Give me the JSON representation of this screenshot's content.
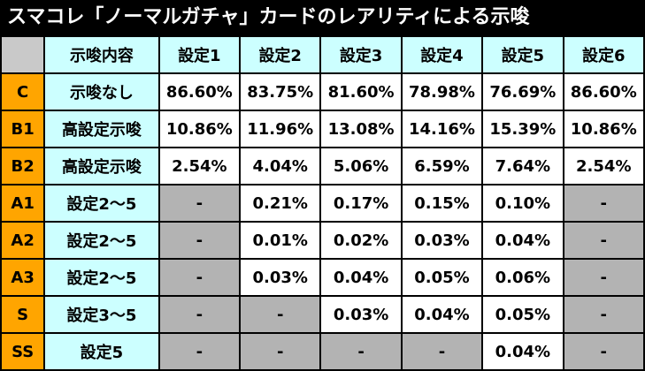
{
  "title": "スマコレ「ノーマルガチャ」カードのレアリティによる示唆",
  "headers": [
    "示唆内容",
    "設定1",
    "設定2",
    "設定3",
    "設定4",
    "設定5",
    "設定6"
  ],
  "rows": [
    {
      "code": "C",
      "hint": "示唆なし",
      "values": [
        "86.60%",
        "83.75%",
        "81.60%",
        "78.98%",
        "76.69%",
        "86.60%"
      ]
    },
    {
      "code": "B1",
      "hint": "高設定示唆",
      "values": [
        "10.86%",
        "11.96%",
        "13.08%",
        "14.16%",
        "15.39%",
        "10.86%"
      ]
    },
    {
      "code": "B2",
      "hint": "高設定示唆",
      "values": [
        "2.54%",
        "4.04%",
        "5.06%",
        "6.59%",
        "7.64%",
        "2.54%"
      ]
    },
    {
      "code": "A1",
      "hint": "設定2～5",
      "values": [
        "-",
        "0.21%",
        "0.17%",
        "0.15%",
        "0.10%",
        "-"
      ]
    },
    {
      "code": "A2",
      "hint": "設定2～5",
      "values": [
        "-",
        "0.01%",
        "0.02%",
        "0.03%",
        "0.04%",
        "-"
      ]
    },
    {
      "code": "A3",
      "hint": "設定2～5",
      "values": [
        "-",
        "0.03%",
        "0.04%",
        "0.05%",
        "0.06%",
        "-"
      ]
    },
    {
      "code": "S",
      "hint": "設定3～5",
      "values": [
        "-",
        "-",
        "0.03%",
        "0.04%",
        "0.05%",
        "-"
      ]
    },
    {
      "code": "SS",
      "hint": "設定5",
      "values": [
        "-",
        "-",
        "-",
        "-",
        "0.04%",
        "-"
      ]
    }
  ],
  "colors": {
    "background": "#000000",
    "title_text": "#ffffff",
    "header_cell": "#ccffff",
    "code_cell": "#ffa500",
    "value_cell": "#ffffff",
    "na_cell": "#b3b3b3",
    "corner_cell": "#c9c9c9"
  }
}
